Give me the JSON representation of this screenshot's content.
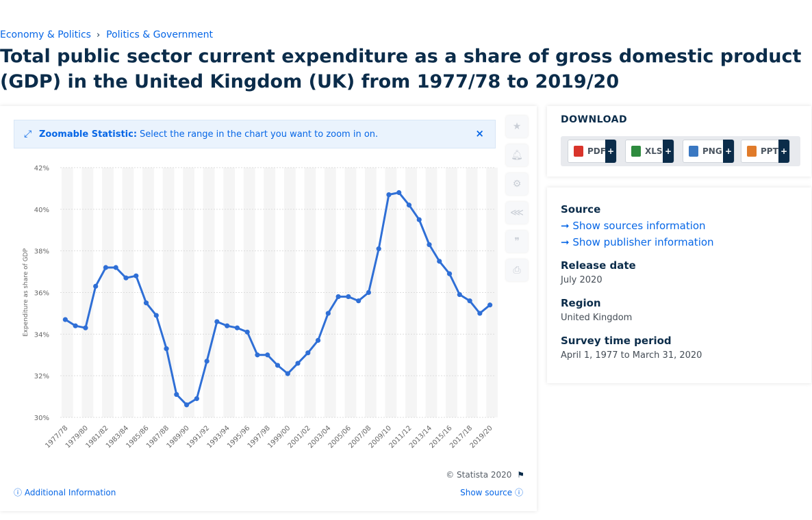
{
  "breadcrumb": {
    "first": "Economy & Politics",
    "separator": "›",
    "second": "Politics & Government"
  },
  "title": "Total public sector current expenditure as a share of gross domestic product (GDP) in the United Kingdom (UK) from 1977/78 to 2019/20",
  "zoom_banner": {
    "label": "Zoomable Statistic:",
    "text": "Select the range in the chart you want to zoom in on.",
    "close": "×"
  },
  "tools": [
    "star-icon",
    "bell-icon",
    "gear-icon",
    "share-icon",
    "quote-icon",
    "print-icon"
  ],
  "copyright": "© Statista 2020",
  "additional_info": "Additional Information",
  "show_source": "Show source",
  "download": {
    "title": "DOWNLOAD",
    "buttons": [
      {
        "label": "PDF",
        "color": "#d9342b"
      },
      {
        "label": "XLS",
        "color": "#2e8b3e"
      },
      {
        "label": "PNG",
        "color": "#3a78c2"
      },
      {
        "label": "PPT",
        "color": "#e07b2a"
      }
    ],
    "plus": "+"
  },
  "info": {
    "source_heading": "Source",
    "show_sources": "Show sources information",
    "show_publisher": "Show publisher information",
    "release_heading": "Release date",
    "release_value": "July 2020",
    "region_heading": "Region",
    "region_value": "United Kingdom",
    "survey_heading": "Survey time period",
    "survey_value": "April 1, 1977 to March 31, 2020"
  },
  "chart_data": {
    "type": "line",
    "ylabel": "Expenditure as share of GDP",
    "ylim": [
      30,
      42
    ],
    "yticks": [
      "30%",
      "32%",
      "34%",
      "36%",
      "38%",
      "40%",
      "42%"
    ],
    "grid": true,
    "color": "#2f6fd6",
    "categories": [
      "1977/78",
      "1978/79",
      "1979/80",
      "1980/81",
      "1981/82",
      "1982/83",
      "1983/84",
      "1984/85",
      "1985/86",
      "1986/87",
      "1987/88",
      "1988/89",
      "1989/90",
      "1990/91",
      "1991/92",
      "1992/93",
      "1993/94",
      "1994/95",
      "1995/96",
      "1996/97",
      "1997/98",
      "1998/99",
      "1999/00",
      "2000/01",
      "2001/02",
      "2002/03",
      "2003/04",
      "2004/05",
      "2005/06",
      "2006/07",
      "2007/08",
      "2008/09",
      "2009/10",
      "2010/11",
      "2011/12",
      "2012/13",
      "2013/14",
      "2014/15",
      "2015/16",
      "2016/17",
      "2017/18",
      "2018/19",
      "2019/20"
    ],
    "xtick_labels": [
      "1977/78",
      "1979/80",
      "1981/82",
      "1983/84",
      "1985/86",
      "1987/88",
      "1989/90",
      "1991/92",
      "1993/94",
      "1995/96",
      "1997/98",
      "1999/00",
      "2001/02",
      "2003/04",
      "2005/06",
      "2007/08",
      "2009/10",
      "2011/12",
      "2013/14",
      "2015/16",
      "2017/18",
      "2019/20"
    ],
    "values": [
      34.7,
      34.4,
      34.3,
      36.3,
      37.2,
      37.2,
      36.7,
      36.8,
      35.5,
      34.9,
      33.3,
      31.1,
      30.6,
      30.9,
      32.7,
      34.6,
      34.4,
      34.3,
      34.1,
      33.0,
      33.0,
      32.5,
      32.1,
      32.6,
      33.1,
      33.7,
      35.0,
      35.8,
      35.8,
      35.6,
      36.0,
      38.1,
      40.7,
      40.8,
      40.2,
      39.5,
      38.3,
      37.5,
      36.9,
      35.9,
      35.6,
      35.0,
      35.4
    ]
  }
}
